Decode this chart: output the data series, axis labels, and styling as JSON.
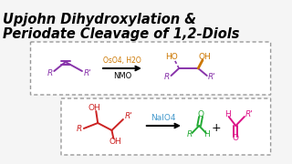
{
  "title_line1": "Upjohn Dihydroxylation &",
  "title_line2": "Periodate Cleavage of 1,2-Diols",
  "title_color": "#000000",
  "title_fontsize": 10.5,
  "bg_color": "#f5f5f5",
  "border_color": "#999999",
  "rxn1_reagent_above": "OsO4, H2O",
  "rxn1_reagent_below": "NMO",
  "rxn1_reagent_color_above": "#cc7700",
  "rxn1_reagent_color_below": "#000000",
  "rxn2_reagent": "NaIO4",
  "rxn2_reagent_color": "#4499cc",
  "alkene_color": "#8833aa",
  "diol_color": "#cc7700",
  "diol2_color": "#cc2222",
  "aldehyde1_color": "#22aa33",
  "aldehyde2_color": "#dd1188",
  "plus_color": "#000000"
}
